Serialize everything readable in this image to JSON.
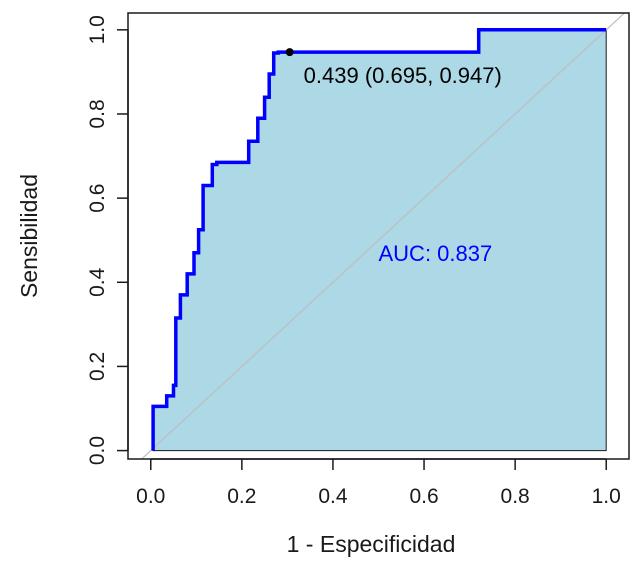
{
  "chart_data": {
    "type": "line",
    "xlabel": "1 - Especificidad",
    "ylabel": "Sensibilidad",
    "xlim": [
      -0.05,
      1.05
    ],
    "ylim": [
      -0.02,
      1.04
    ],
    "x_ticks": [
      "0.0",
      "0.2",
      "0.4",
      "0.6",
      "0.8",
      "1.0"
    ],
    "y_ticks": [
      "0.0",
      "0.2",
      "0.4",
      "0.6",
      "0.8",
      "1.0"
    ],
    "roc_curve": {
      "x": [
        0.005,
        0.005,
        0.035,
        0.035,
        0.05,
        0.05,
        0.055,
        0.055,
        0.065,
        0.065,
        0.08,
        0.08,
        0.095,
        0.095,
        0.105,
        0.105,
        0.115,
        0.115,
        0.135,
        0.135,
        0.145,
        0.145,
        0.15,
        0.15,
        0.175,
        0.175,
        0.195,
        0.195,
        0.215,
        0.215,
        0.235,
        0.235,
        0.25,
        0.25,
        0.26,
        0.26,
        0.27,
        0.27,
        0.28,
        0.28,
        0.3,
        0.3,
        0.72,
        0.72,
        1.0
      ],
      "y": [
        0.0,
        0.105,
        0.105,
        0.13,
        0.13,
        0.155,
        0.155,
        0.315,
        0.315,
        0.37,
        0.37,
        0.42,
        0.42,
        0.47,
        0.47,
        0.525,
        0.525,
        0.63,
        0.63,
        0.68,
        0.68,
        0.685,
        0.685,
        0.685,
        0.685,
        0.685,
        0.685,
        0.685,
        0.685,
        0.735,
        0.735,
        0.79,
        0.79,
        0.84,
        0.84,
        0.895,
        0.895,
        0.945,
        0.945,
        0.947,
        0.947,
        0.947,
        0.947,
        1.0,
        1.0
      ]
    },
    "reference_line": [
      [
        -0.05,
        -0.05
      ],
      [
        1.05,
        1.05
      ]
    ],
    "best_threshold_point": {
      "x": 0.305,
      "y": 0.947
    },
    "annotations": {
      "threshold_label": "0.439 (0.695, 0.947)",
      "auc_label": "AUC: 0.837"
    },
    "colors": {
      "curve": "#0000ff",
      "fill": "#add8e6",
      "reference_line": "#bebebe",
      "point": "#000000",
      "auc_text": "#0000ff",
      "threshold_text": "#000000"
    },
    "grid": false
  }
}
